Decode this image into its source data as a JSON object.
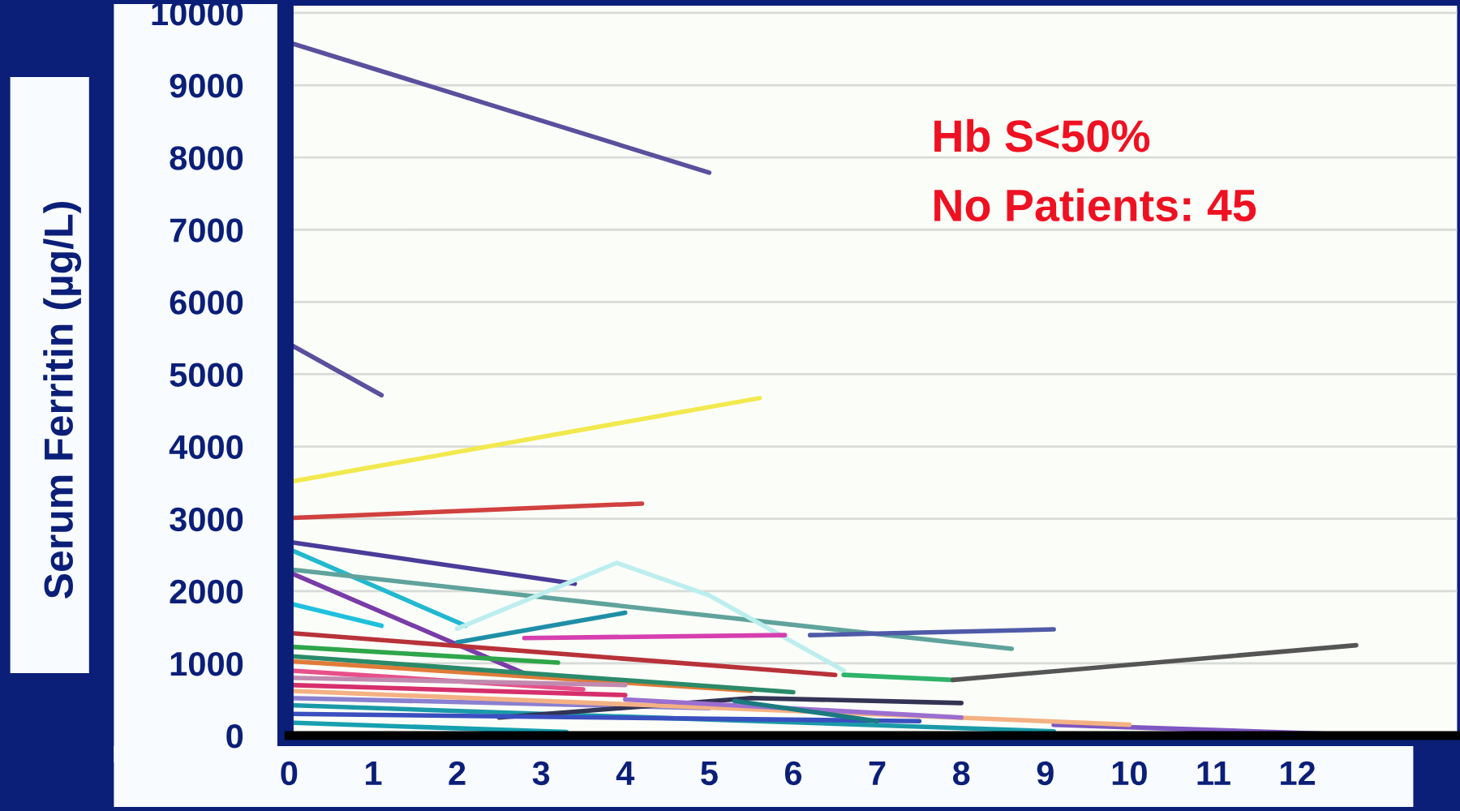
{
  "chart_data": {
    "type": "line",
    "ylabel": "Serum Ferritin (µg/L)",
    "annotations": [
      "Hb S<50%",
      "No Patients: 45"
    ],
    "xlim": [
      0,
      13.9
    ],
    "xticks": [
      0,
      1,
      2,
      3,
      4,
      5,
      6,
      7,
      8,
      9,
      10,
      11,
      12
    ],
    "ylim": [
      0,
      10100
    ],
    "yticks": [
      0,
      1000,
      2000,
      3000,
      4000,
      5000,
      6000,
      7000,
      8000,
      9000,
      10000
    ],
    "grid": "y",
    "series": [
      {
        "color": "#5b4f9e",
        "x": [
          0,
          5.0
        ],
        "values": [
          9590,
          7790
        ]
      },
      {
        "color": "#5b4f9e",
        "x": [
          0,
          1.1
        ],
        "values": [
          5420,
          4710
        ]
      },
      {
        "color": "#f2e94e",
        "x": [
          0,
          5.6
        ],
        "values": [
          3510,
          4670
        ]
      },
      {
        "color": "#d0413f",
        "x": [
          0,
          4.2
        ],
        "values": [
          3010,
          3210
        ]
      },
      {
        "color": "#4b3c9a",
        "x": [
          0,
          3.4
        ],
        "values": [
          2680,
          2100
        ]
      },
      {
        "color": "#22b8d0",
        "x": [
          0,
          2.1
        ],
        "values": [
          2580,
          1520
        ]
      },
      {
        "color": "#5fa39c",
        "x": [
          0,
          8.6
        ],
        "values": [
          2300,
          1200
        ]
      },
      {
        "color": "#7a3ca8",
        "x": [
          0,
          2.8
        ],
        "values": [
          2260,
          860
        ]
      },
      {
        "color": "#bdeeee",
        "x": [
          2.0,
          3.9,
          5.0,
          5.8,
          6.6
        ],
        "values": [
          1480,
          2390,
          1940,
          1420,
          900
        ]
      },
      {
        "color": "#1f8fa8",
        "x": [
          2.0,
          4.0
        ],
        "values": [
          1290,
          1700
        ]
      },
      {
        "color": "#1fc0dd",
        "x": [
          0,
          1.1
        ],
        "values": [
          1830,
          1520
        ]
      },
      {
        "color": "#d63fb0",
        "x": [
          2.8,
          5.9
        ],
        "values": [
          1350,
          1390
        ]
      },
      {
        "color": "#4f5aa8",
        "x": [
          6.2,
          9.1
        ],
        "values": [
          1390,
          1470
        ]
      },
      {
        "color": "#2eb36b",
        "x": [
          6.6,
          7.9
        ],
        "values": [
          840,
          770
        ]
      },
      {
        "color": "#555555",
        "x": [
          7.9,
          12.7
        ],
        "values": [
          770,
          1250
        ]
      },
      {
        "color": "#b8323a",
        "x": [
          0,
          6.5
        ],
        "values": [
          1420,
          840
        ]
      },
      {
        "color": "#7e57c2",
        "x": [
          9.1,
          13.0
        ],
        "values": [
          150,
          0
        ]
      },
      {
        "color": "#2ea64a",
        "x": [
          0,
          3.2
        ],
        "values": [
          1230,
          1010
        ]
      },
      {
        "color": "#e07b39",
        "x": [
          0,
          5.5
        ],
        "values": [
          1030,
          620
        ]
      },
      {
        "color": "#e8508a",
        "x": [
          0,
          3.5
        ],
        "values": [
          900,
          640
        ]
      },
      {
        "color": "#d62f6b",
        "x": [
          0,
          4.0
        ],
        "values": [
          700,
          560
        ]
      },
      {
        "color": "#8a7fd0",
        "x": [
          0,
          5.0
        ],
        "values": [
          520,
          380
        ]
      },
      {
        "color": "#1a9aa8",
        "x": [
          0,
          9.1
        ],
        "values": [
          420,
          60
        ]
      },
      {
        "color": "#333355",
        "x": [
          2.5,
          5.5,
          8.0
        ],
        "values": [
          250,
          520,
          450
        ]
      },
      {
        "color": "#3a4fc0",
        "x": [
          0,
          7.5
        ],
        "values": [
          300,
          200
        ]
      },
      {
        "color": "#2a8a6a",
        "x": [
          0,
          6.0
        ],
        "values": [
          1100,
          600
        ]
      },
      {
        "color": "#16a0b0",
        "x": [
          0,
          3.3
        ],
        "values": [
          180,
          50
        ]
      },
      {
        "color": "#f4b183",
        "x": [
          0,
          9.0,
          10.0
        ],
        "values": [
          620,
          200,
          150
        ]
      },
      {
        "color": "#9b6fd0",
        "x": [
          4.0,
          8.0
        ],
        "values": [
          500,
          250
        ]
      },
      {
        "color": "#1b7a80",
        "x": [
          5.3,
          7.0
        ],
        "values": [
          480,
          200
        ]
      },
      {
        "color": "#c08ab0",
        "x": [
          0,
          4.0
        ],
        "values": [
          800,
          700
        ]
      }
    ]
  }
}
